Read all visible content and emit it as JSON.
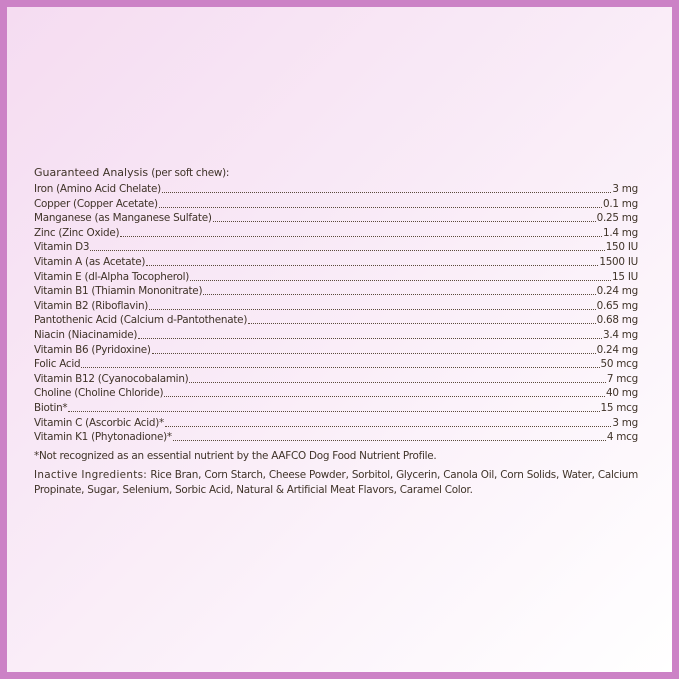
{
  "heading": {
    "title": "Guaranteed Analysis",
    "subtitle": "(per soft chew):"
  },
  "items": [
    {
      "name": "Iron (Amino Acid Chelate)",
      "amount": "3 mg"
    },
    {
      "name": "Copper (Copper Acetate)",
      "amount": "0.1 mg"
    },
    {
      "name": "Manganese (as Manganese Sulfate)",
      "amount": "0.25 mg"
    },
    {
      "name": "Zinc (Zinc Oxide)",
      "amount": "1.4 mg"
    },
    {
      "name": "Vitamin D3",
      "amount": "150 IU"
    },
    {
      "name": "Vitamin A (as Acetate)",
      "amount": "1500 IU"
    },
    {
      "name": "Vitamin E (dl-Alpha Tocopherol)",
      "amount": "15 IU"
    },
    {
      "name": "Vitamin B1 (Thiamin Mononitrate)",
      "amount": "0.24 mg"
    },
    {
      "name": "Vitamin B2 (Riboflavin)",
      "amount": "0.65 mg"
    },
    {
      "name": "Pantothenic Acid (Calcium d-Pantothenate)",
      "amount": "0.68 mg"
    },
    {
      "name": "Niacin (Niacinamide)",
      "amount": "3.4 mg"
    },
    {
      "name": "Vitamin B6 (Pyridoxine)",
      "amount": "0.24 mg"
    },
    {
      "name": "Folic Acid",
      "amount": "50 mcg"
    },
    {
      "name": "Vitamin B12 (Cyanocobalamin)",
      "amount": "7 mcg"
    },
    {
      "name": "Choline (Choline Chloride)",
      "amount": "40 mg"
    },
    {
      "name": "Biotin*",
      "amount": "15 mcg"
    },
    {
      "name": "Vitamin C (Ascorbic Acid)*",
      "amount": "3 mg"
    },
    {
      "name": "Vitamin K1 (Phytonadione)*",
      "amount": "4 mcg"
    }
  ],
  "footnote": "*Not recognized as an essential nutrient by the AAFCO Dog Food Nutrient Profile.",
  "inactive": {
    "label": "Inactive Ingredients:",
    "text": "Rice Bran, Corn Starch, Cheese Powder, Sorbitol, Glycerin, Canola Oil, Corn Solids, Water, Calcium Propinate, Sugar, Selenium, Sorbic Acid, Natural & Artificial Meat Flavors, Caramel Color."
  },
  "colors": {
    "border": "#cc82c6",
    "text": "#3f3328"
  }
}
